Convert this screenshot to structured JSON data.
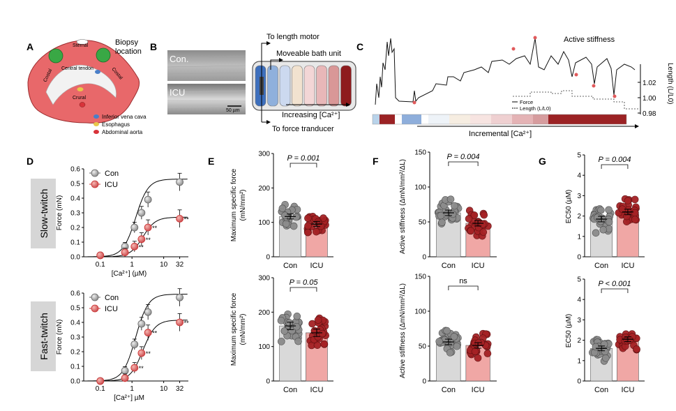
{
  "panels": {
    "A": {
      "label": "A",
      "biopsy": [
        "Biopsy",
        "location"
      ],
      "regions": {
        "sternal": "Sternal",
        "costal": "Costal",
        "central_tendon": "Central tendon",
        "crural": "Crural"
      },
      "legend": [
        {
          "label": "Inferior vena cava",
          "color": "#4a7fc8"
        },
        {
          "label": "Esophagus",
          "color": "#e8c84a"
        },
        {
          "label": "Abdominal aorta",
          "color": "#d8333a"
        }
      ]
    },
    "B": {
      "label": "B",
      "img_top": "Con.",
      "img_bottom": "ICU",
      "scalebar": "50 µm",
      "to_length_motor": "To length motor",
      "moveable_bath": "Moveable bath unit",
      "increasing": "Increasing [Ca²⁺]",
      "to_force": "To force tranducer",
      "bath_colors": [
        "#3d6fbd",
        "#8fb0dc",
        "#ccd9ef",
        "#f2e2cf",
        "#f3d6d6",
        "#e8b7b8",
        "#d99797",
        "#8e1b1d"
      ]
    },
    "C": {
      "label": "C",
      "active_stiffness": "Active stiffness",
      "axis_title": "Length (L/L0)",
      "axis_ticks": [
        "1.02",
        "1.00",
        "0.98"
      ],
      "legend_force": "Force",
      "legend_length": "Length (L/L0)",
      "incremental": "Incremental [Ca²⁺]",
      "bar_colors": [
        "#b9d3ea",
        "#9b2224",
        "#ffffff",
        "#8eaedb",
        "#ffffff",
        "#eef3f8",
        "#f6ede1",
        "#f7e4e1",
        "#efd0d1",
        "#e4b3b5",
        "#d69c9e",
        "#9b2224"
      ]
    },
    "D": {
      "label": "D",
      "slow": "Slow-twitch",
      "fast": "Fast-twitch",
      "legend_con": "Con",
      "legend_icu": "ICU",
      "ylabel": "Force (mN)",
      "xlabel_top": "[Ca²⁺] (µM)",
      "xlabel_bottom": "[Ca²⁺] µM",
      "yticks": [
        "0.0",
        "0.1",
        "0.2",
        "0.3",
        "0.4",
        "0.5",
        "0.6"
      ],
      "xticks": [
        "0.1",
        "1",
        "10",
        "32"
      ],
      "sig": "**"
    },
    "E": {
      "label": "E",
      "ylabel": "Maximum specific force",
      "yunit": "(mN/mm²)",
      "top_p": "P = 0.001",
      "bottom_p": "P = 0.05",
      "top_yticks": [
        "0",
        "100",
        "200",
        "300"
      ],
      "bottom_yticks": [
        "0",
        "100",
        "200",
        "300"
      ],
      "cats": [
        "Con",
        "ICU"
      ]
    },
    "F": {
      "label": "F",
      "ylabel": "Active stiffness (ΔmN/mm²/ΔL)",
      "top_p": "P = 0.004",
      "bottom_p": "ns",
      "yticks": [
        "0",
        "50",
        "100",
        "150"
      ],
      "cats": [
        "Con",
        "ICU"
      ]
    },
    "G": {
      "label": "G",
      "ylabel": "EC50 (µM)",
      "top_p": "P = 0.004",
      "bottom_p": "P < 0.001",
      "yticks": [
        "0",
        "1",
        "2",
        "3",
        "4",
        "5"
      ],
      "cats": [
        "Con",
        "ICU"
      ]
    }
  },
  "chart_data": [
    {
      "type": "line",
      "panel": "D",
      "title": "Slow-twitch",
      "xlabel": "[Ca²⁺] (µM)",
      "ylabel": "Force (mN)",
      "ylim": [
        0,
        0.6
      ],
      "x": [
        0.1,
        0.6,
        1.2,
        2.0,
        3.2,
        32
      ],
      "series": [
        {
          "name": "Con",
          "values": [
            0.01,
            0.07,
            0.2,
            0.3,
            0.39,
            0.51
          ]
        },
        {
          "name": "ICU",
          "values": [
            0.01,
            0.03,
            0.07,
            0.12,
            0.2,
            0.26
          ]
        }
      ]
    },
    {
      "type": "line",
      "panel": "D",
      "title": "Fast-twitch",
      "xlabel": "[Ca²⁺] µM",
      "ylabel": "Force (mN)",
      "ylim": [
        0,
        0.6
      ],
      "x": [
        0.1,
        0.6,
        1.2,
        2.0,
        3.2,
        32
      ],
      "series": [
        {
          "name": "Con",
          "values": [
            0.0,
            0.07,
            0.25,
            0.39,
            0.47,
            0.57
          ]
        },
        {
          "name": "ICU",
          "values": [
            0.0,
            0.02,
            0.09,
            0.19,
            0.33,
            0.4
          ]
        }
      ]
    },
    {
      "type": "bar",
      "panel": "E-top",
      "categories": [
        "Con",
        "ICU"
      ],
      "values": [
        117,
        95
      ],
      "ylim": [
        0,
        300
      ],
      "ylabel": "Maximum specific force (mN/mm²)"
    },
    {
      "type": "bar",
      "panel": "E-bottom",
      "categories": [
        "Con",
        "ICU"
      ],
      "values": [
        160,
        140
      ],
      "ylim": [
        0,
        300
      ],
      "ylabel": "Maximum specific force (mN/mm²)"
    },
    {
      "type": "bar",
      "panel": "F-top",
      "categories": [
        "Con",
        "ICU"
      ],
      "values": [
        63,
        48
      ],
      "ylim": [
        0,
        150
      ],
      "ylabel": "Active stiffness (ΔmN/mm²/ΔL)"
    },
    {
      "type": "bar",
      "panel": "F-bottom",
      "categories": [
        "Con",
        "ICU"
      ],
      "values": [
        56,
        51
      ],
      "ylim": [
        0,
        150
      ],
      "ylabel": "Active stiffness (ΔmN/mm²/ΔL)"
    },
    {
      "type": "bar",
      "panel": "G-top",
      "categories": [
        "Con",
        "ICU"
      ],
      "values": [
        1.85,
        2.2
      ],
      "ylim": [
        0,
        5
      ],
      "ylabel": "EC50 (µM)"
    },
    {
      "type": "bar",
      "panel": "G-bottom",
      "categories": [
        "Con",
        "ICU"
      ],
      "values": [
        1.6,
        2.05
      ],
      "ylim": [
        0,
        5
      ],
      "ylabel": "EC50 (µM)"
    }
  ]
}
